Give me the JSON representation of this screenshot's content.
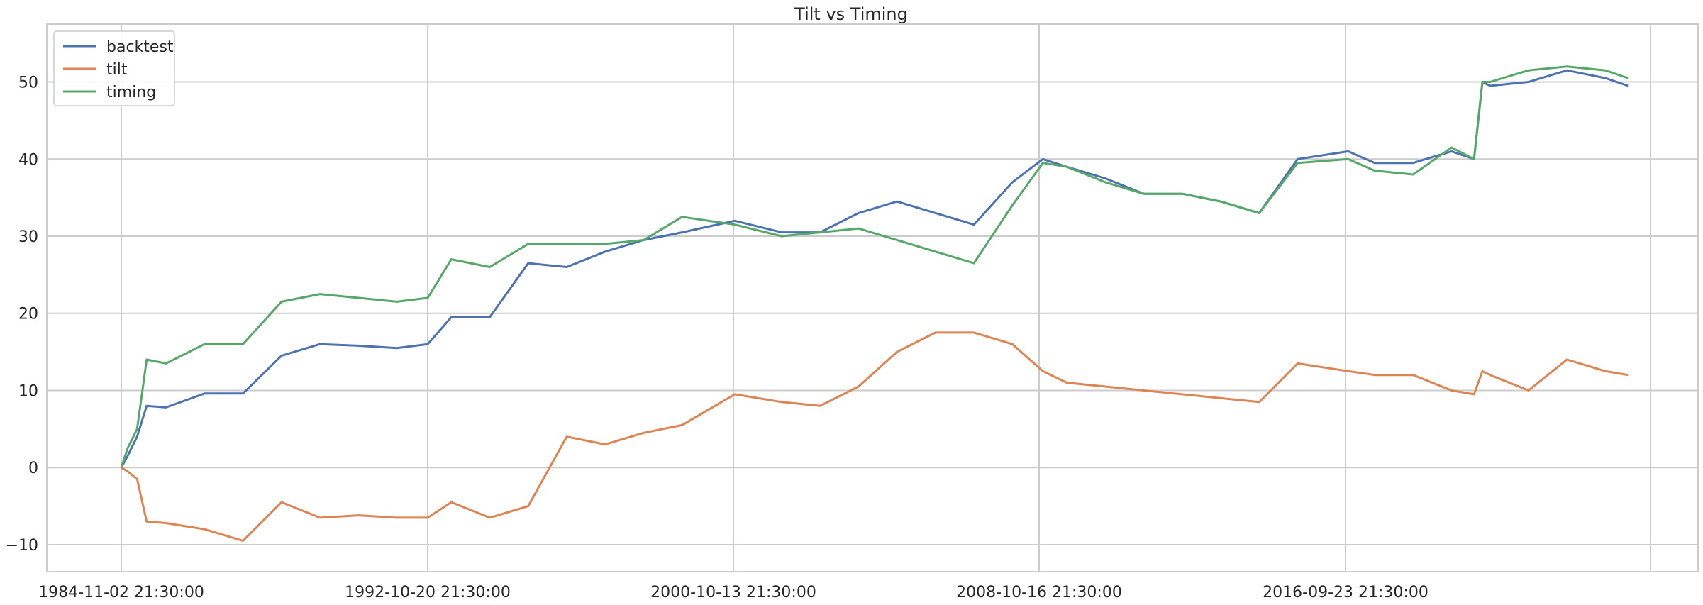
{
  "chart_data": {
    "type": "line",
    "title": "Tilt vs Timing",
    "xlabel": "",
    "ylabel": "",
    "x_ticks": [
      "1984-11-02 21:30:00",
      "1992-10-20 21:30:00",
      "2000-10-13 21:30:00",
      "2008-10-16 21:30:00",
      "2016-09-23 21:30:00"
    ],
    "x": [
      "1984-11-02",
      "1985-01-01",
      "1985-04-01",
      "1985-07-01",
      "1986-01-01",
      "1987-01-01",
      "1988-01-01",
      "1989-01-01",
      "1990-01-01",
      "1991-01-01",
      "1992-01-01",
      "1992-10-20",
      "1993-06-01",
      "1994-06-01",
      "1995-06-01",
      "1996-06-01",
      "1997-06-01",
      "1998-06-01",
      "1999-06-01",
      "2000-10-13",
      "2002-01-01",
      "2003-01-01",
      "2004-01-01",
      "2005-01-01",
      "2006-01-01",
      "2007-01-01",
      "2008-01-01",
      "2008-10-16",
      "2009-06-01",
      "2010-06-01",
      "2011-06-01",
      "2012-06-01",
      "2013-06-01",
      "2014-06-01",
      "2015-06-01",
      "2016-09-23",
      "2017-06-01",
      "2018-06-01",
      "2019-06-01",
      "2020-01-01",
      "2020-03-20",
      "2020-06-01",
      "2021-06-01",
      "2022-06-01",
      "2023-06-01",
      "2024-01-01"
    ],
    "series": [
      {
        "name": "backtest",
        "color": "#4c72b0",
        "values": [
          0,
          1.5,
          4.0,
          8.0,
          7.8,
          9.6,
          9.6,
          14.5,
          16.0,
          15.8,
          15.5,
          16.0,
          19.5,
          19.5,
          26.5,
          26.0,
          28.0,
          29.5,
          30.5,
          32.0,
          30.5,
          30.5,
          33.0,
          34.5,
          33.0,
          31.5,
          37.0,
          40.0,
          39.0,
          37.5,
          35.5,
          35.5,
          34.5,
          33.0,
          40.0,
          41.0,
          39.5,
          39.5,
          41.0,
          40.0,
          50.0,
          49.5,
          50.0,
          51.5,
          50.5,
          49.5
        ]
      },
      {
        "name": "tilt",
        "color": "#dd8452",
        "values": [
          0,
          -0.5,
          -1.5,
          -7.0,
          -7.2,
          -8.0,
          -9.5,
          -4.5,
          -6.5,
          -6.2,
          -6.5,
          -6.5,
          -4.5,
          -6.5,
          -5.0,
          4.0,
          3.0,
          4.5,
          5.5,
          9.5,
          8.5,
          8.0,
          10.5,
          15.0,
          17.5,
          17.5,
          16.0,
          12.5,
          11.0,
          10.5,
          10.0,
          9.5,
          9.0,
          8.5,
          13.5,
          12.5,
          12.0,
          12.0,
          10.0,
          9.5,
          12.5,
          12.0,
          10.0,
          14.0,
          12.5,
          12.0
        ]
      },
      {
        "name": "timing",
        "color": "#55a868",
        "values": [
          0,
          2.5,
          5.0,
          14.0,
          13.5,
          16.0,
          16.0,
          21.5,
          22.5,
          22.0,
          21.5,
          22.0,
          27.0,
          26.0,
          29.0,
          29.0,
          29.0,
          29.5,
          32.5,
          31.5,
          30.0,
          30.5,
          31.0,
          29.5,
          28.0,
          26.5,
          34.0,
          39.5,
          39.0,
          37.0,
          35.5,
          35.5,
          34.5,
          33.0,
          39.5,
          40.0,
          38.5,
          38.0,
          41.5,
          40.0,
          50.0,
          50.0,
          51.5,
          52.0,
          51.5,
          50.5
        ]
      }
    ],
    "ylim": [
      -13.5,
      57.5
    ],
    "y_ticks": [
      -10,
      0,
      10,
      20,
      30,
      40,
      50
    ],
    "grid": true,
    "legend_position": "top-left"
  }
}
